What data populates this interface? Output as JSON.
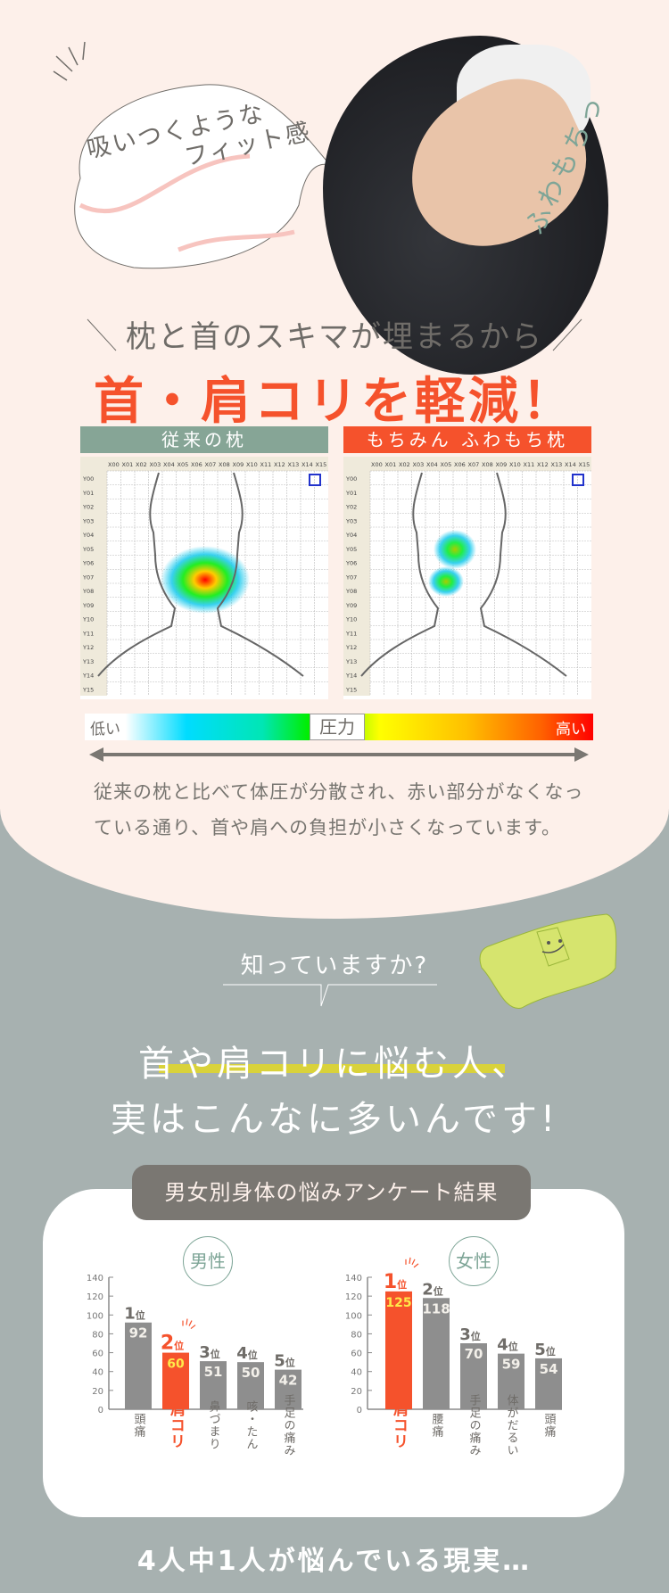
{
  "hero": {
    "bubble_line1": "吸いつくような",
    "bubble_line2": "フィット感",
    "photo_caption": "ふわもちっ"
  },
  "section1": {
    "subheading": "枕と首のスキマが埋まるから",
    "headline": "首・肩コリを軽減！"
  },
  "heatmaps": [
    {
      "title": "従来の枕",
      "header_color": "#86a596"
    },
    {
      "title": "もちみん ふわもち枕",
      "header_color": "#f5522c"
    }
  ],
  "heatmap_axes": {
    "x": [
      "X00",
      "X01",
      "X02",
      "X03",
      "X04",
      "X05",
      "X06",
      "X07",
      "X08",
      "X09",
      "X10",
      "X11",
      "X12",
      "X13",
      "X14",
      "X15"
    ],
    "y": [
      "Y00",
      "Y01",
      "Y02",
      "Y03",
      "Y04",
      "Y05",
      "Y06",
      "Y07",
      "Y08",
      "Y09",
      "Y10",
      "Y11",
      "Y12",
      "Y13",
      "Y14",
      "Y15"
    ]
  },
  "legend": {
    "low": "低い",
    "label": "圧力",
    "high": "高い"
  },
  "description": "従来の枕と比べて体圧が分散され、赤い部分がなくなっている通り、首や肩への負担が小さくなっています。",
  "section2": {
    "question": "知っていますか?",
    "line1": "首や肩コリに悩む人、",
    "line2": "実はこんなに多いんです!",
    "survey_title": "男女別身体の悩みアンケート結果",
    "conclusion": "4人中1人が悩んでいる現実…"
  },
  "colors": {
    "accent": "#f5522c",
    "bar": "#8e8e8e",
    "highlight_value": "#ffe94a",
    "peach": "#fdf0ea",
    "gray_bg": "#a7b1b0",
    "green": "#7ea597"
  },
  "rank_suffix": "位",
  "chart_data": [
    {
      "type": "bar",
      "title": "男性",
      "categories": [
        "頭痛",
        "肩コリ",
        "鼻づまり",
        "咳・たん",
        "手足の痛み"
      ],
      "values": [
        92,
        60,
        51,
        50,
        42
      ],
      "ranks": [
        "1",
        "2",
        "3",
        "4",
        "5"
      ],
      "highlight_index": 1,
      "ylim": [
        0,
        140
      ],
      "yticks": [
        "0",
        "20",
        "40",
        "60",
        "80",
        "100",
        "120",
        "140"
      ]
    },
    {
      "type": "bar",
      "title": "女性",
      "categories": [
        "肩コリ",
        "腰痛",
        "手足の痛み",
        "体がだるい",
        "頭痛"
      ],
      "values": [
        125,
        118,
        70,
        59,
        54
      ],
      "ranks": [
        "1",
        "2",
        "3",
        "4",
        "5"
      ],
      "highlight_index": 0,
      "ylim": [
        0,
        140
      ],
      "yticks": [
        "0",
        "20",
        "40",
        "60",
        "80",
        "100",
        "120",
        "140"
      ]
    }
  ]
}
